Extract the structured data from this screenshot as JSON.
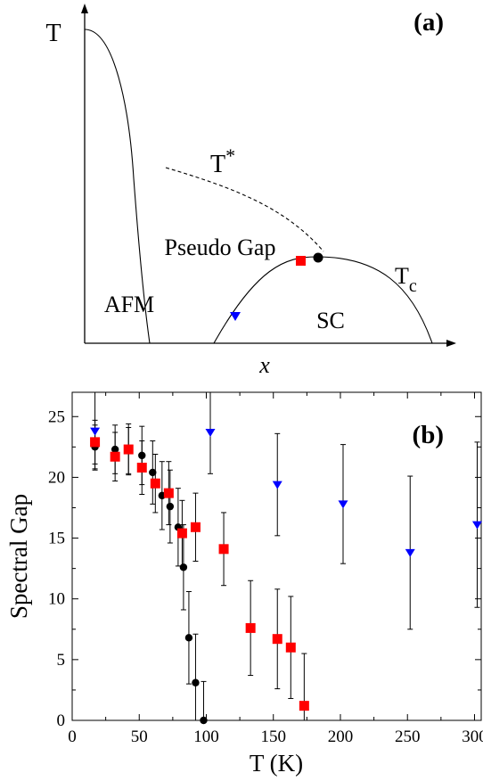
{
  "panel_a": {
    "panel_label": "(a)",
    "y_axis_label": "T",
    "x_axis_label": "x",
    "regions": {
      "afm": "AFM",
      "pseudo_gap": "Pseudo Gap",
      "sc": "SC"
    },
    "curve_labels": {
      "t_star_base": "T",
      "t_star_sup": "*",
      "tc_base": "T",
      "tc_sub": "c"
    },
    "marker_colors": {
      "red_square": "#ff0000",
      "black_circle": "#000000",
      "blue_triangle": "#0000ff"
    }
  },
  "chart_data": {
    "type": "scatter",
    "panel_label": "(b)",
    "title": "",
    "xlabel": "T (K)",
    "ylabel": "Spectral Gap",
    "xlim": [
      0,
      305
    ],
    "ylim": [
      0,
      27
    ],
    "x_ticks": [
      0,
      50,
      100,
      150,
      200,
      250,
      300
    ],
    "y_ticks": [
      0,
      5,
      10,
      15,
      20,
      25
    ],
    "grid": false,
    "legend": "none",
    "series": [
      {
        "marker": "circle",
        "color": "#000000",
        "points": [
          {
            "x": 17,
            "y": 22.5,
            "err": 1.8
          },
          {
            "x": 32,
            "y": 22.3,
            "err": 2.0
          },
          {
            "x": 42,
            "y": 22.2,
            "err": 1.9
          },
          {
            "x": 52,
            "y": 21.8,
            "err": 2.4
          },
          {
            "x": 60,
            "y": 20.4,
            "err": 2.6
          },
          {
            "x": 67,
            "y": 18.5,
            "err": 2.8
          },
          {
            "x": 73,
            "y": 17.6,
            "err": 3.0
          },
          {
            "x": 79,
            "y": 15.9,
            "err": 3.2
          },
          {
            "x": 83,
            "y": 12.6,
            "err": 3.5
          },
          {
            "x": 87,
            "y": 6.8,
            "err": 3.8
          },
          {
            "x": 92,
            "y": 3.1,
            "err": 4.0
          },
          {
            "x": 98,
            "y": 0.0,
            "err": 3.2
          }
        ]
      },
      {
        "marker": "square",
        "color": "#ff0000",
        "points": [
          {
            "x": 17,
            "y": 22.9,
            "err": 1.8
          },
          {
            "x": 32,
            "y": 21.7,
            "err": 2.0
          },
          {
            "x": 42,
            "y": 22.3,
            "err": 2.1
          },
          {
            "x": 52,
            "y": 20.8,
            "err": 2.2
          },
          {
            "x": 62,
            "y": 19.5,
            "err": 2.4
          },
          {
            "x": 72,
            "y": 18.7,
            "err": 2.6
          },
          {
            "x": 82,
            "y": 15.4,
            "err": 2.7
          },
          {
            "x": 92,
            "y": 15.9,
            "err": 2.8
          },
          {
            "x": 113,
            "y": 14.1,
            "err": 3.0
          },
          {
            "x": 133,
            "y": 7.6,
            "err": 3.9
          },
          {
            "x": 153,
            "y": 6.7,
            "err": 4.1
          },
          {
            "x": 163,
            "y": 6.0,
            "err": 4.2
          },
          {
            "x": 173,
            "y": 1.2,
            "err": 4.3
          }
        ]
      },
      {
        "marker": "triangle-down",
        "color": "#0000ff",
        "points": [
          {
            "x": 17,
            "y": 23.8,
            "err": 3.2
          },
          {
            "x": 103,
            "y": 23.7,
            "err": 3.4
          },
          {
            "x": 153,
            "y": 19.4,
            "err": 4.2
          },
          {
            "x": 202,
            "y": 17.8,
            "err": 4.9
          },
          {
            "x": 252,
            "y": 13.8,
            "err": 6.3
          },
          {
            "x": 302,
            "y": 16.1,
            "err": 6.8
          }
        ]
      }
    ]
  }
}
